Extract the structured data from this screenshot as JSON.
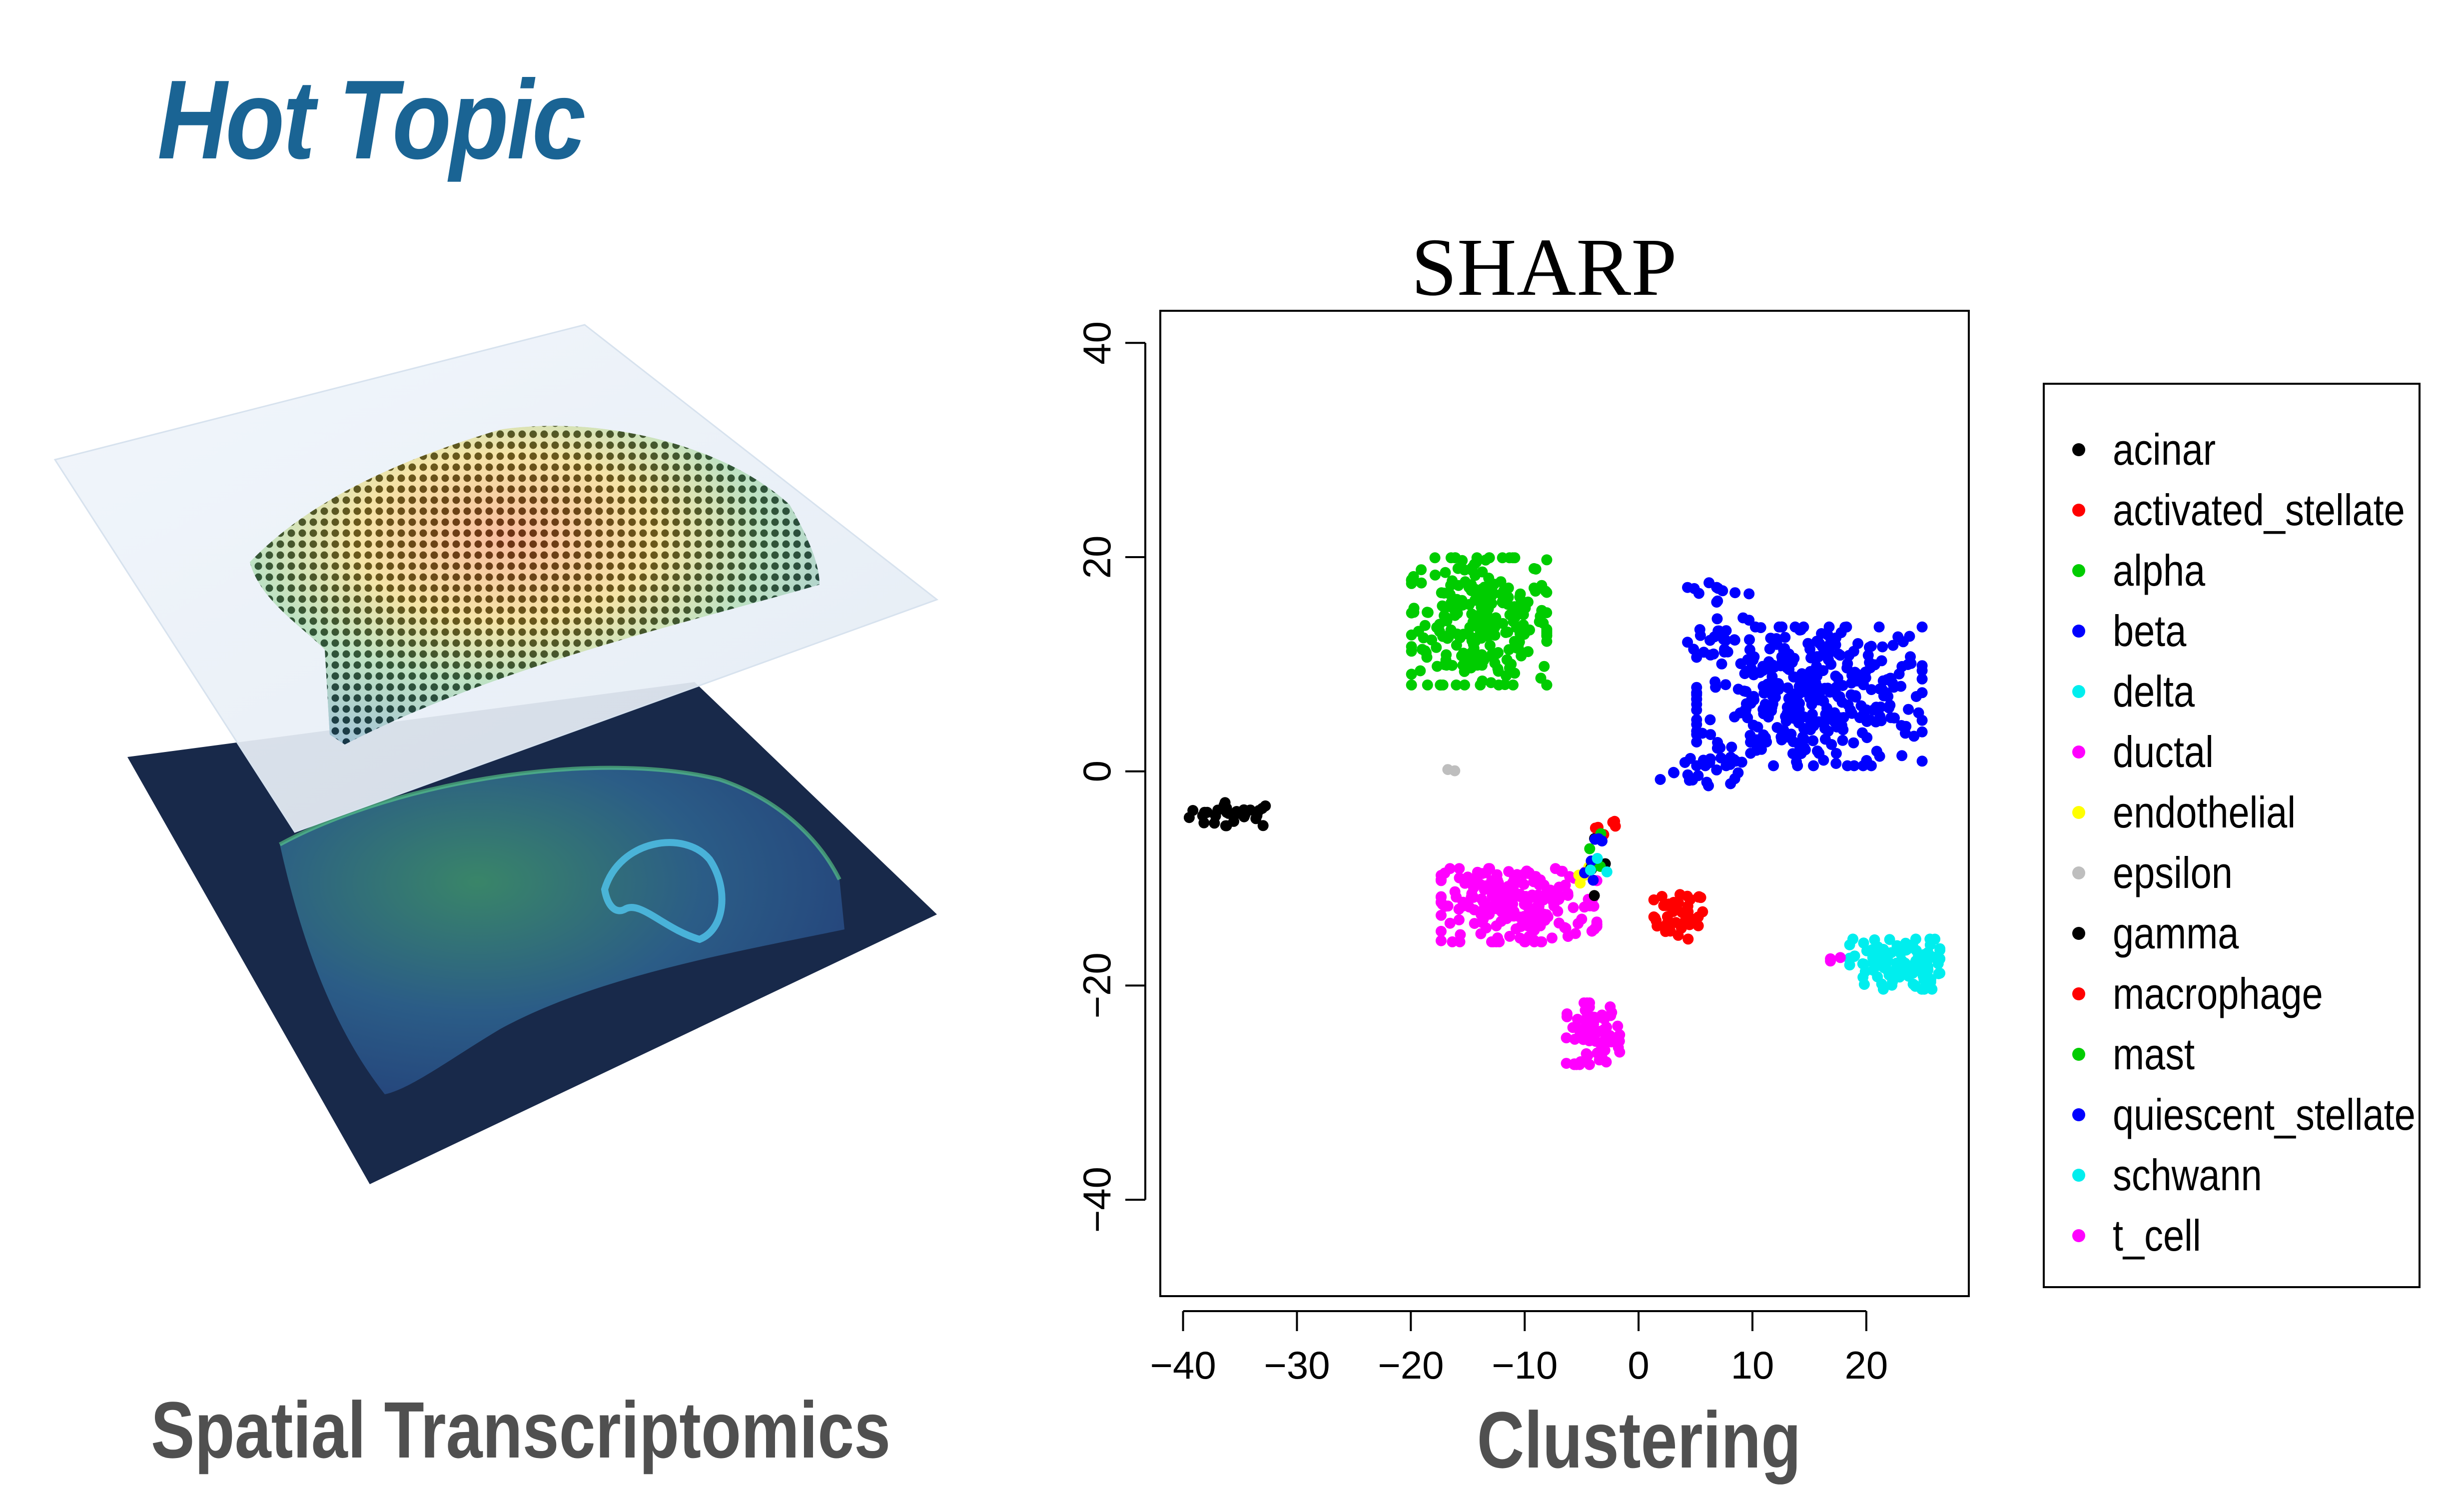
{
  "header": {
    "title": "Hot Topic"
  },
  "captions": {
    "left": "Spatial Transcriptomics",
    "right": "Clustering"
  },
  "colors": {
    "title": "#1a6494",
    "caption": "#505050",
    "tissue_bg": "#18294a"
  },
  "chart_data": {
    "type": "scatter",
    "title": "SHARP",
    "xlabel": "",
    "ylabel": "",
    "xlim": [
      -42,
      29
    ],
    "ylim": [
      -49,
      43
    ],
    "xticks": [
      -40,
      -30,
      -20,
      -10,
      0,
      10,
      20
    ],
    "yticks": [
      -40,
      -20,
      0,
      20,
      40
    ],
    "legend_position": "right",
    "series": [
      {
        "name": "acinar",
        "color": "#000000",
        "clusters": [
          {
            "cx": -35.5,
            "cy": -4,
            "sx": 2.2,
            "sy": 0.6,
            "n": 30
          }
        ]
      },
      {
        "name": "activated_stellate",
        "color": "#ff0000",
        "clusters": [
          {
            "cx": 3.5,
            "cy": -13.5,
            "sx": 1.2,
            "sy": 1.2,
            "n": 40
          }
        ]
      },
      {
        "name": "alpha",
        "color": "#00cc00",
        "clusters": [
          {
            "cx": -14,
            "cy": 14,
            "sx": 3.3,
            "sy": 3.3,
            "n": 260
          }
        ]
      },
      {
        "name": "beta",
        "color": "#0000ff",
        "clusters": [
          {
            "cx": 15,
            "cy": 7,
            "sx": 5.5,
            "sy": 3.6,
            "n": 380
          },
          {
            "cx": 7,
            "cy": 15,
            "sx": 1.5,
            "sy": 2.0,
            "n": 25
          },
          {
            "cx": 5,
            "cy": 0,
            "sx": 3.0,
            "sy": 1.2,
            "n": 20
          }
        ]
      },
      {
        "name": "delta",
        "color": "#00eeee",
        "clusters": [
          {
            "cx": 22.5,
            "cy": -18,
            "sx": 2.2,
            "sy": 1.3,
            "n": 110
          }
        ]
      },
      {
        "name": "ductal",
        "color": "#ff00ff",
        "clusters": [
          {
            "cx": -10.5,
            "cy": -12.5,
            "sx": 3.8,
            "sy": 1.9,
            "n": 220
          },
          {
            "cx": -4,
            "cy": -24.5,
            "sx": 1.3,
            "sy": 1.6,
            "n": 70
          }
        ]
      },
      {
        "name": "endothelial",
        "color": "#ffff00",
        "clusters": [
          {
            "cx": -5,
            "cy": -10,
            "sx": 0.4,
            "sy": 0.8,
            "n": 4
          }
        ]
      },
      {
        "name": "epsilon",
        "color": "#bebebe",
        "clusters": [
          {
            "cx": -16.5,
            "cy": 0,
            "sx": 0.2,
            "sy": 0.2,
            "n": 2
          }
        ]
      },
      {
        "name": "gamma",
        "color": "#000000",
        "clusters": [
          {
            "cx": -4,
            "cy": -8,
            "sx": 0.6,
            "sy": 2.0,
            "n": 6
          }
        ]
      },
      {
        "name": "macrophage",
        "color": "#ff0000",
        "clusters": [
          {
            "cx": -3,
            "cy": -5,
            "sx": 0.6,
            "sy": 0.5,
            "n": 6
          }
        ]
      },
      {
        "name": "mast",
        "color": "#00cc00",
        "clusters": [
          {
            "cx": -4,
            "cy": -8,
            "sx": 0.6,
            "sy": 1.5,
            "n": 4
          }
        ]
      },
      {
        "name": "quiescent_stellate",
        "color": "#0000ff",
        "clusters": [
          {
            "cx": -4,
            "cy": -8,
            "sx": 0.7,
            "sy": 1.5,
            "n": 6
          }
        ]
      },
      {
        "name": "schwann",
        "color": "#00eeee",
        "clusters": [
          {
            "cx": -3.5,
            "cy": -8,
            "sx": 0.4,
            "sy": 1.0,
            "n": 3
          }
        ]
      },
      {
        "name": "t_cell",
        "color": "#ff00ff",
        "clusters": [
          {
            "cx": 17,
            "cy": -17.5,
            "sx": 0.4,
            "sy": 0.3,
            "n": 3
          }
        ]
      }
    ]
  }
}
